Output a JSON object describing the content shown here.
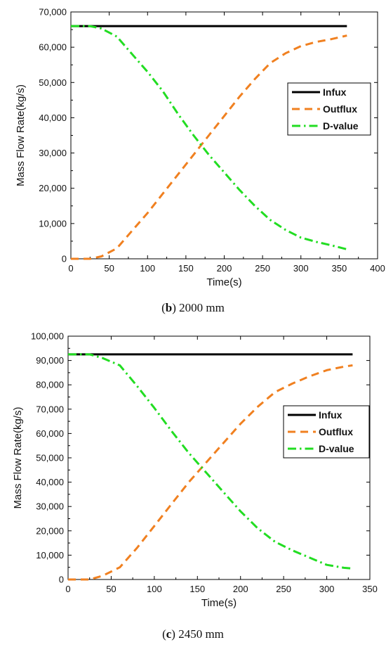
{
  "chart_data": [
    {
      "type": "line",
      "caption": {
        "open": "(",
        "letter": "b",
        "rest": ") 2000 mm"
      },
      "xlabel": "Time(s)",
      "ylabel": "Mass Flow Rate(kg/s)",
      "xlim": [
        0,
        400
      ],
      "ylim": [
        0,
        70000
      ],
      "xticks": [
        0,
        50,
        100,
        150,
        200,
        250,
        300,
        350,
        400
      ],
      "yticks": [
        0,
        10000,
        20000,
        30000,
        40000,
        50000,
        60000,
        70000
      ],
      "xtick_labels": [
        "0",
        "50",
        "100",
        "150",
        "200",
        "250",
        "300",
        "350",
        "400"
      ],
      "ytick_labels": [
        "0",
        "10,000",
        "20,000",
        "30,000",
        "40,000",
        "50,000",
        "60,000",
        "70,000"
      ],
      "grid": false,
      "legend_position": "right",
      "series": [
        {
          "name": "Infux",
          "color": "#000000",
          "style": "solid",
          "x": [
            0,
            360
          ],
          "y": [
            66000,
            66000
          ]
        },
        {
          "name": "Outflux",
          "color": "#f08020",
          "style": "dash",
          "x": [
            0,
            25,
            40,
            60,
            80,
            100,
            120,
            140,
            160,
            180,
            200,
            220,
            240,
            260,
            280,
            300,
            320,
            340,
            360
          ],
          "y": [
            0,
            0,
            700,
            3000,
            8000,
            13000,
            18500,
            24000,
            29500,
            35000,
            40500,
            46000,
            51000,
            55500,
            58300,
            60300,
            61500,
            62300,
            63300
          ]
        },
        {
          "name": "D-value",
          "color": "#22dd22",
          "style": "dashdot",
          "x": [
            0,
            25,
            40,
            60,
            80,
            100,
            120,
            140,
            160,
            180,
            200,
            220,
            240,
            260,
            280,
            300,
            320,
            340,
            360
          ],
          "y": [
            66000,
            66000,
            65300,
            63000,
            58000,
            53000,
            47500,
            41000,
            35000,
            29500,
            24500,
            19500,
            15000,
            11000,
            8200,
            6000,
            4800,
            3800,
            2700
          ]
        }
      ]
    },
    {
      "type": "line",
      "caption": {
        "open": "(",
        "letter": "c",
        "rest": ") 2450 mm"
      },
      "xlabel": "Time(s)",
      "ylabel": "Mass Flow Rate(kg/s)",
      "xlim": [
        0,
        350
      ],
      "ylim": [
        0,
        100000
      ],
      "xticks": [
        0,
        50,
        100,
        150,
        200,
        250,
        300,
        350
      ],
      "yticks": [
        0,
        10000,
        20000,
        30000,
        40000,
        50000,
        60000,
        70000,
        80000,
        90000,
        100000
      ],
      "xtick_labels": [
        "0",
        "50",
        "100",
        "150",
        "200",
        "250",
        "300",
        "350"
      ],
      "ytick_labels": [
        "0",
        "10,000",
        "20,000",
        "30,000",
        "40,000",
        "50,000",
        "60,000",
        "70,000",
        "80,000",
        "90,000",
        "100,000"
      ],
      "grid": false,
      "legend_position": "right",
      "series": [
        {
          "name": "Infux",
          "color": "#000000",
          "style": "solid",
          "x": [
            0,
            330
          ],
          "y": [
            92500,
            92500
          ]
        },
        {
          "name": "Outflux",
          "color": "#f08020",
          "style": "dash",
          "x": [
            0,
            25,
            40,
            60,
            80,
            100,
            120,
            140,
            160,
            180,
            200,
            220,
            240,
            260,
            280,
            300,
            320,
            330
          ],
          "y": [
            0,
            0,
            1500,
            5000,
            13000,
            22000,
            31000,
            40000,
            48000,
            56000,
            64000,
            71000,
            77000,
            80500,
            83500,
            86000,
            87500,
            88000
          ]
        },
        {
          "name": "D-value",
          "color": "#22dd22",
          "style": "dashdot",
          "x": [
            0,
            25,
            40,
            60,
            80,
            100,
            120,
            140,
            160,
            180,
            200,
            220,
            240,
            260,
            280,
            300,
            320,
            330
          ],
          "y": [
            92500,
            92500,
            91000,
            88000,
            79500,
            70500,
            61000,
            52000,
            44000,
            36000,
            28000,
            21000,
            15500,
            12000,
            9000,
            6000,
            4800,
            4500
          ]
        }
      ]
    }
  ]
}
